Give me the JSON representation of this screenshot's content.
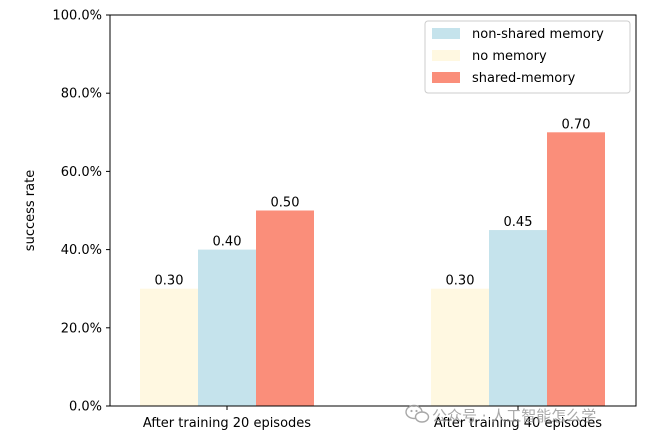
{
  "chart_data": {
    "type": "bar",
    "title": "",
    "xlabel": "",
    "ylabel": "success rate",
    "ylim": [
      0,
      1.0
    ],
    "yticks": [
      "0.0%",
      "20.0%",
      "40.0%",
      "60.0%",
      "80.0%",
      "100.0%"
    ],
    "categories": [
      "After training 20 episodes",
      "After training 40 episodes"
    ],
    "series": [
      {
        "name": "no memory",
        "values": [
          0.3,
          0.3
        ],
        "labels": [
          "0.30",
          "0.30"
        ],
        "color": "#fff8e1"
      },
      {
        "name": "non-shared memory",
        "values": [
          0.4,
          0.45
        ],
        "labels": [
          "0.40",
          "0.45"
        ],
        "color": "#c5e3ec"
      },
      {
        "name": "shared-memory",
        "values": [
          0.5,
          0.7
        ],
        "labels": [
          "0.50",
          "0.70"
        ],
        "color": "#fa8e7a"
      }
    ],
    "legend": {
      "placement": "top-right",
      "order": [
        "non-shared memory",
        "no memory",
        "shared-memory"
      ]
    },
    "grid": false
  },
  "watermark": {
    "text": "公众号 · 人工智能怎么学",
    "icon": "wechat-icon"
  }
}
